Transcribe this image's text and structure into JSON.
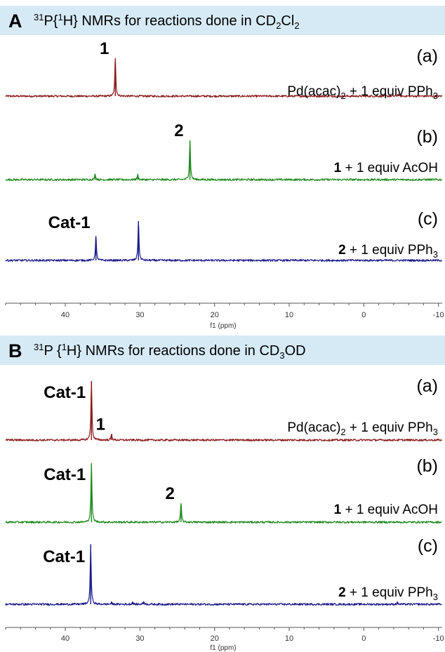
{
  "chart_data": [
    {
      "type": "line",
      "panel_letter": "A",
      "title_parts": [
        {
          "t": "31",
          "s": "sup"
        },
        {
          "t": "P{",
          "s": ""
        },
        {
          "t": "1",
          "s": "sup"
        },
        {
          "t": "H} NMRs for reactions done in CD",
          "s": ""
        },
        {
          "t": "2",
          "s": "sub"
        },
        {
          "t": "Cl",
          "s": ""
        },
        {
          "t": "2",
          "s": "sub"
        }
      ],
      "xlabel": "f1 (ppm)",
      "x_ticks": [
        "40",
        "30",
        "20",
        "10",
        "0",
        "-10"
      ],
      "xlim": [
        48,
        -10.5
      ],
      "x_reversed": true,
      "series": [
        {
          "tag": "(a)",
          "color": "#8b1a1a",
          "description_parts": [
            {
              "t": "Pd(acac)",
              "s": ""
            },
            {
              "t": "2",
              "s": "sub"
            },
            {
              "t": " + 1 equiv PPh",
              "s": ""
            },
            {
              "t": "3",
              "s": "sub"
            }
          ],
          "peaks": [
            {
              "ppm": 33.3,
              "intensity": 1.0,
              "label": "1"
            },
            {
              "ppm": -4.6,
              "intensity": 0.06,
              "label": ""
            }
          ]
        },
        {
          "tag": "(b)",
          "color": "#1e8a1e",
          "description_parts": [
            {
              "t": "1",
              "s": "bold"
            },
            {
              "t": " + 1 equiv AcOH",
              "s": ""
            }
          ],
          "peaks": [
            {
              "ppm": 23.3,
              "intensity": 1.0,
              "label": "2"
            },
            {
              "ppm": 36.0,
              "intensity": 0.15,
              "label": ""
            },
            {
              "ppm": 30.3,
              "intensity": 0.13,
              "label": ""
            }
          ]
        },
        {
          "tag": "(c)",
          "color": "#1a1a8b",
          "description_parts": [
            {
              "t": "2",
              "s": "bold"
            },
            {
              "t": " + 1 equiv PPh",
              "s": ""
            },
            {
              "t": "3",
              "s": "sub"
            }
          ],
          "peaks": [
            {
              "ppm": 30.2,
              "intensity": 1.0,
              "label": ""
            },
            {
              "ppm": 35.9,
              "intensity": 0.62,
              "label": "Cat-1"
            }
          ]
        }
      ]
    },
    {
      "type": "line",
      "panel_letter": "B",
      "title_parts": [
        {
          "t": "31",
          "s": "sup"
        },
        {
          "t": "P {",
          "s": ""
        },
        {
          "t": "1",
          "s": "sup"
        },
        {
          "t": "H} NMRs for reactions done in CD",
          "s": ""
        },
        {
          "t": "3",
          "s": "sub"
        },
        {
          "t": "OD",
          "s": ""
        }
      ],
      "xlabel": "f1 (ppm)",
      "x_ticks": [
        "40",
        "30",
        "20",
        "10",
        "0",
        "-10"
      ],
      "xlim": [
        48,
        -10.5
      ],
      "x_reversed": true,
      "series": [
        {
          "tag": "(a)",
          "color": "#8b1a1a",
          "description_parts": [
            {
              "t": "Pd(acac)",
              "s": ""
            },
            {
              "t": "2",
              "s": "sub"
            },
            {
              "t": " + 1 equiv PPh",
              "s": ""
            },
            {
              "t": "3",
              "s": "sub"
            }
          ],
          "peaks": [
            {
              "ppm": 36.5,
              "intensity": 1.0,
              "label": "Cat-1"
            },
            {
              "ppm": 33.8,
              "intensity": 0.1,
              "label": "1"
            }
          ]
        },
        {
          "tag": "(b)",
          "color": "#1e8a1e",
          "description_parts": [
            {
              "t": "1",
              "s": "bold"
            },
            {
              "t": " + 1 equiv AcOH",
              "s": ""
            }
          ],
          "peaks": [
            {
              "ppm": 36.5,
              "intensity": 1.0,
              "label": "Cat-1"
            },
            {
              "ppm": 24.5,
              "intensity": 0.32,
              "label": "2"
            }
          ]
        },
        {
          "tag": "(c)",
          "color": "#1a1a8b",
          "description_parts": [
            {
              "t": "2",
              "s": "bold"
            },
            {
              "t": " + 1 equiv PPh",
              "s": ""
            },
            {
              "t": "3",
              "s": "sub"
            }
          ],
          "peaks": [
            {
              "ppm": 36.6,
              "intensity": 1.0,
              "label": "Cat-1"
            },
            {
              "ppm": 33.8,
              "intensity": 0.03,
              "label": ""
            },
            {
              "ppm": 31.0,
              "intensity": 0.04,
              "label": ""
            },
            {
              "ppm": 29.5,
              "intensity": 0.05,
              "label": ""
            },
            {
              "ppm": -4.5,
              "intensity": 0.03,
              "label": ""
            }
          ]
        }
      ]
    }
  ]
}
